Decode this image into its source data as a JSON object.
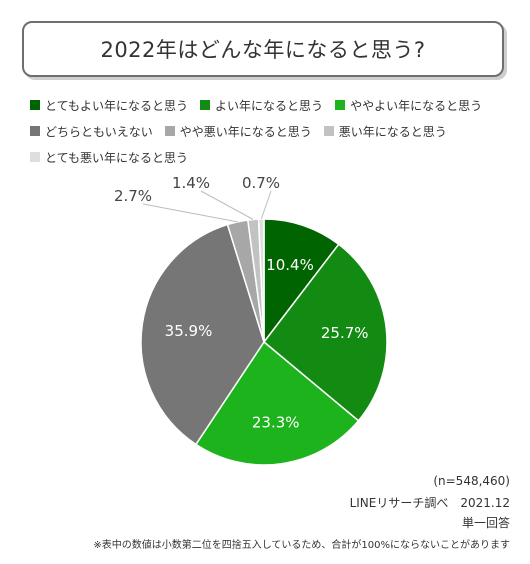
{
  "title": "2022年はどんな年になると思う?",
  "chart_data": {
    "type": "pie",
    "categories": [
      "とてもよい年になると思う",
      "よい年になると思う",
      "ややよい年になると思う",
      "どちらともいえない",
      "やや悪い年になると思う",
      "悪い年になると思う",
      "とても悪い年になると思う"
    ],
    "values": [
      10.4,
      25.7,
      23.3,
      35.9,
      2.7,
      1.4,
      0.7
    ],
    "labels": [
      "10.4%",
      "25.7%",
      "23.3%",
      "35.9%",
      "2.7%",
      "1.4%",
      "0.7%"
    ],
    "colors": [
      "#006400",
      "#138b13",
      "#1db31d",
      "#767676",
      "#a7a7a7",
      "#c2c2c2",
      "#dedede"
    ],
    "start_angle_deg": 0,
    "direction": "clockwise",
    "legend_position": "top"
  },
  "notes": {
    "n": "(n=548,460)",
    "source": "LINEリサーチ調べ　2021.12",
    "answer_type": "単一回答",
    "footnote": "※表中の数値は小数第二位を四捨五入しているため、合計が100%にならないことがあります"
  }
}
